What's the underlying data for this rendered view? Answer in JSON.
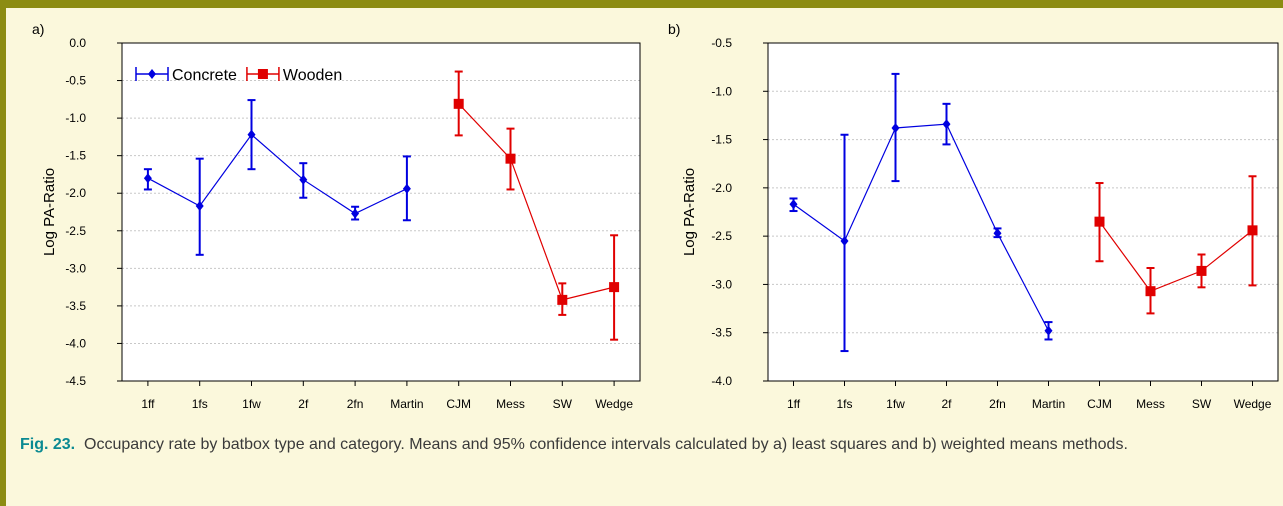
{
  "caption": {
    "label": "Fig. 23.",
    "text": "Occupancy rate by batbox type and category.  Means and 95% confidence intervals calculated by a) least squares and b) weighted means methods."
  },
  "colors": {
    "concrete": "#0000e0",
    "wooden": "#e00000",
    "grid": "#c8c8c8",
    "frame": "#8c8c12",
    "background": "#fbf8dc",
    "caption_label": "#0b8a92"
  },
  "chart_data": [
    {
      "type": "line",
      "panel_label": "a)",
      "ylabel": "Log PA-Ratio",
      "categories": [
        "1ff",
        "1fs",
        "1fw",
        "2f",
        "2fn",
        "Martin",
        "CJM",
        "Mess",
        "SW",
        "Wedge"
      ],
      "ylim": [
        -4.5,
        0.0
      ],
      "yticks": [
        0.0,
        -0.5,
        -1.0,
        -1.5,
        -2.0,
        -2.5,
        -3.0,
        -3.5,
        -4.0,
        -4.5
      ],
      "ytick_labels": [
        "0.0",
        "-0.5",
        "-1.0",
        "-1.5",
        "-2.0",
        "-2.5",
        "-3.0",
        "-3.5",
        "-4.0",
        "-4.5"
      ],
      "grid": true,
      "legend": "top-left",
      "series": [
        {
          "name": "Concrete",
          "color": "#0000e0",
          "marker": "diamond",
          "x": [
            "1ff",
            "1fs",
            "1fw",
            "2f",
            "2fn",
            "Martin"
          ],
          "y": [
            -1.8,
            -2.17,
            -1.22,
            -1.82,
            -2.27,
            -1.94
          ],
          "lower": [
            -1.95,
            -2.82,
            -1.68,
            -2.06,
            -2.35,
            -2.36
          ],
          "upper": [
            -1.68,
            -1.54,
            -0.76,
            -1.6,
            -2.18,
            -1.51
          ]
        },
        {
          "name": "Wooden",
          "color": "#e00000",
          "marker": "square",
          "x": [
            "CJM",
            "Mess",
            "SW",
            "Wedge"
          ],
          "y": [
            -0.81,
            -1.54,
            -3.42,
            -3.25
          ],
          "lower": [
            -1.23,
            -1.95,
            -3.62,
            -3.95
          ],
          "upper": [
            -0.38,
            -1.14,
            -3.2,
            -2.56
          ]
        }
      ]
    },
    {
      "type": "line",
      "panel_label": "b)",
      "ylabel": "Log PA-Ratio",
      "categories": [
        "1ff",
        "1fs",
        "1fw",
        "2f",
        "2fn",
        "Martin",
        "CJM",
        "Mess",
        "SW",
        "Wedge"
      ],
      "ylim": [
        -4.0,
        -0.5
      ],
      "yticks": [
        -0.5,
        -1.0,
        -1.5,
        -2.0,
        -2.5,
        -3.0,
        -3.5,
        -4.0
      ],
      "ytick_labels": [
        "-0.5",
        "-1.0",
        "-1.5",
        "-2.0",
        "-2.5",
        "-3.0",
        "-3.5",
        "-4.0"
      ],
      "grid": true,
      "series": [
        {
          "color": "#0000e0",
          "marker": "diamond",
          "x": [
            "1ff",
            "1fs",
            "1fw",
            "2f",
            "2fn",
            "Martin"
          ],
          "y": [
            -2.17,
            -2.55,
            -1.38,
            -1.34,
            -2.47,
            -3.48
          ],
          "lower": [
            -2.24,
            -3.69,
            -1.93,
            -1.55,
            -2.51,
            -3.57
          ],
          "upper": [
            -2.11,
            -1.45,
            -0.82,
            -1.13,
            -2.42,
            -3.39
          ]
        },
        {
          "color": "#e00000",
          "marker": "square",
          "x": [
            "CJM",
            "Mess",
            "SW",
            "Wedge"
          ],
          "y": [
            -2.35,
            -3.07,
            -2.86,
            -2.44
          ],
          "lower": [
            -2.76,
            -3.3,
            -3.03,
            -3.01
          ],
          "upper": [
            -1.95,
            -2.83,
            -2.69,
            -1.88
          ]
        }
      ]
    }
  ]
}
